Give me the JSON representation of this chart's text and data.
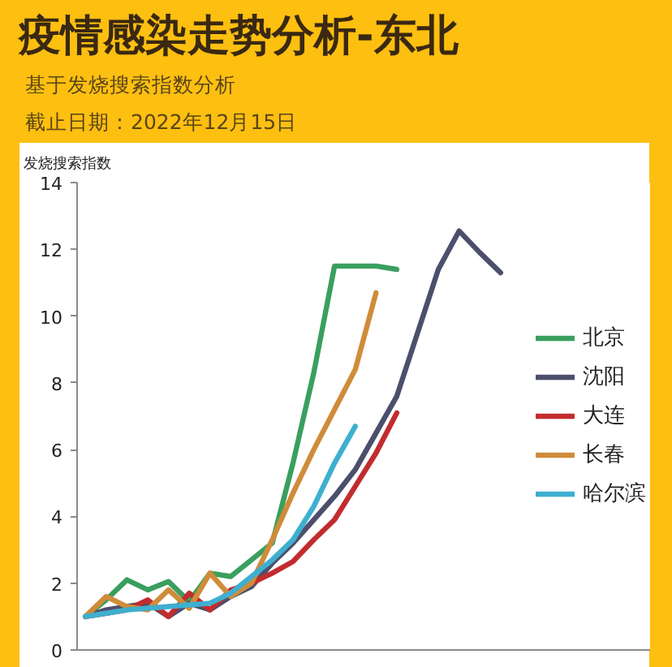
{
  "chart_data": {
    "type": "line",
    "title": "疫情感染走势分析-东北",
    "subtitle": "基于发烧搜索指数分析",
    "annotations": [
      "截止日期：2022年12月15日"
    ],
    "ylabel": "发烧搜索指数",
    "categories": [
      null,
      null,
      null,
      null,
      null,
      null,
      null,
      null,
      null,
      null,
      null,
      null,
      null,
      null,
      null,
      null,
      null,
      null,
      null,
      null,
      null
    ],
    "series": [
      {
        "name": "北京",
        "color": "#3a9f5e",
        "values": [
          1.0,
          1.5,
          2.1,
          1.8,
          2.05,
          1.45,
          2.3,
          2.2,
          2.7,
          3.2,
          5.6,
          8.3,
          11.5,
          11.5,
          11.5,
          11.4,
          null,
          null,
          null,
          null,
          null
        ]
      },
      {
        "name": "沈阳",
        "color": "#4c4f6c",
        "values": [
          1.0,
          1.2,
          1.3,
          1.4,
          1.0,
          1.4,
          1.2,
          1.6,
          1.9,
          2.6,
          3.2,
          3.9,
          4.6,
          5.4,
          6.5,
          7.6,
          9.5,
          11.4,
          12.55,
          11.9,
          11.3
        ]
      },
      {
        "name": "大连",
        "color": "#c22c2e",
        "values": [
          1.0,
          1.1,
          1.2,
          1.5,
          1.0,
          1.7,
          1.2,
          1.8,
          2.0,
          2.3,
          2.65,
          3.3,
          3.9,
          4.9,
          5.9,
          7.1,
          null,
          null,
          null,
          null,
          null
        ]
      },
      {
        "name": "长春",
        "color": "#cf8c3a",
        "values": [
          1.0,
          1.6,
          1.3,
          1.2,
          1.8,
          1.25,
          2.3,
          1.6,
          2.0,
          3.3,
          4.7,
          6.0,
          7.2,
          8.4,
          10.7,
          null,
          null,
          null,
          null,
          null,
          null
        ]
      },
      {
        "name": "哈尔滨",
        "color": "#3eafd0",
        "values": [
          1.0,
          1.1,
          1.2,
          1.25,
          1.3,
          1.35,
          1.4,
          1.7,
          2.2,
          2.7,
          3.3,
          4.3,
          5.6,
          6.7,
          null,
          null,
          null,
          null,
          null,
          null,
          null
        ]
      }
    ],
    "ylim": [
      0,
      14
    ],
    "yticks": [
      0,
      2,
      4,
      6,
      8,
      10,
      12,
      14
    ],
    "legend": "right",
    "tick_labels": "y"
  }
}
